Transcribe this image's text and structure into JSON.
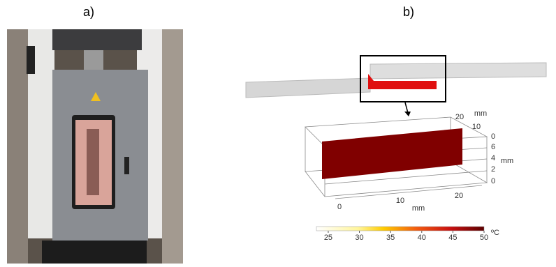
{
  "panels": {
    "a": {
      "label": "a)"
    },
    "b": {
      "label": "b)"
    }
  },
  "plot3d": {
    "depth_axis": {
      "ticks": [
        20,
        10,
        0
      ],
      "unit": "mm"
    },
    "height_axis": {
      "ticks": [
        6,
        4,
        2,
        0
      ],
      "unit": "mm"
    },
    "length_axis": {
      "ticks": [
        0,
        10,
        20
      ],
      "unit": "mm"
    }
  },
  "colorbar": {
    "range": [
      23.1,
      50
    ],
    "ticks": [
      25,
      30,
      35,
      40,
      45,
      50
    ],
    "unit": "ºC"
  }
}
